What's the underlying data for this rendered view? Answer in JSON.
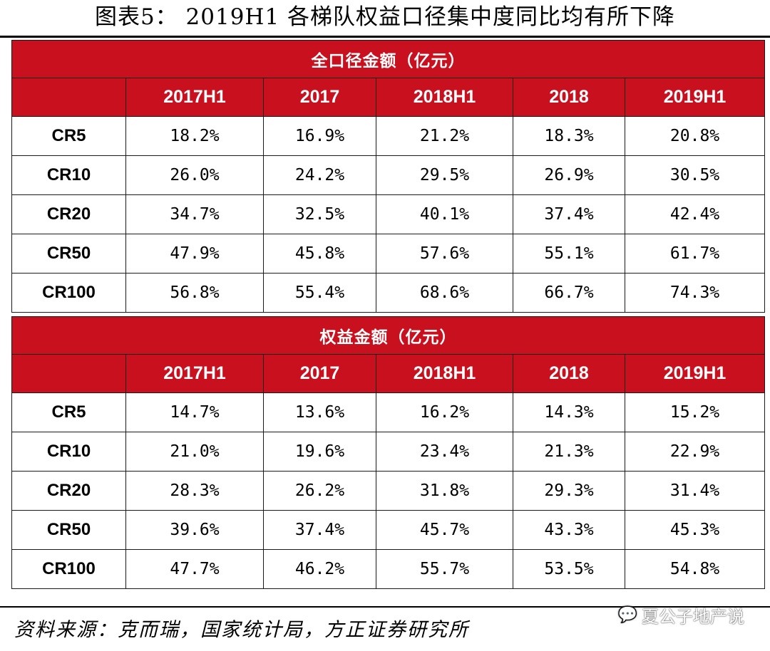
{
  "title": "图表5：  2019H1 各梯队权益口径集中度同比均有所下降",
  "columns": [
    "",
    "2017H1",
    "2017",
    "2018H1",
    "2018",
    "2019H1"
  ],
  "sections": [
    {
      "heading": "全口径金额（亿元）",
      "rows": [
        {
          "label": "CR5",
          "values": [
            "18.2%",
            "16.9%",
            "21.2%",
            "18.3%",
            "20.8%"
          ]
        },
        {
          "label": "CR10",
          "values": [
            "26.0%",
            "24.2%",
            "29.5%",
            "26.9%",
            "30.5%"
          ]
        },
        {
          "label": "CR20",
          "values": [
            "34.7%",
            "32.5%",
            "40.1%",
            "37.4%",
            "42.4%"
          ]
        },
        {
          "label": "CR50",
          "values": [
            "47.9%",
            "45.8%",
            "57.6%",
            "55.1%",
            "61.7%"
          ]
        },
        {
          "label": "CR100",
          "values": [
            "56.8%",
            "55.4%",
            "68.6%",
            "66.7%",
            "74.3%"
          ]
        }
      ]
    },
    {
      "heading": "权益金额（亿元）",
      "rows": [
        {
          "label": "CR5",
          "values": [
            "14.7%",
            "13.6%",
            "16.2%",
            "14.3%",
            "15.2%"
          ]
        },
        {
          "label": "CR10",
          "values": [
            "21.0%",
            "19.6%",
            "23.4%",
            "21.3%",
            "22.9%"
          ]
        },
        {
          "label": "CR20",
          "values": [
            "28.3%",
            "26.2%",
            "31.8%",
            "29.3%",
            "31.4%"
          ]
        },
        {
          "label": "CR50",
          "values": [
            "39.6%",
            "37.4%",
            "45.7%",
            "43.3%",
            "45.3%"
          ]
        },
        {
          "label": "CR100",
          "values": [
            "47.7%",
            "46.2%",
            "55.7%",
            "53.5%",
            "54.8%"
          ]
        }
      ]
    }
  ],
  "source": "资料来源：克而瑞，国家统计局，方正证券研究所",
  "watermark": {
    "icon": "wechat-icon",
    "text": "夏公子地产说"
  },
  "colors": {
    "header_red": "#c8101e",
    "header_text": "#ffffff"
  }
}
